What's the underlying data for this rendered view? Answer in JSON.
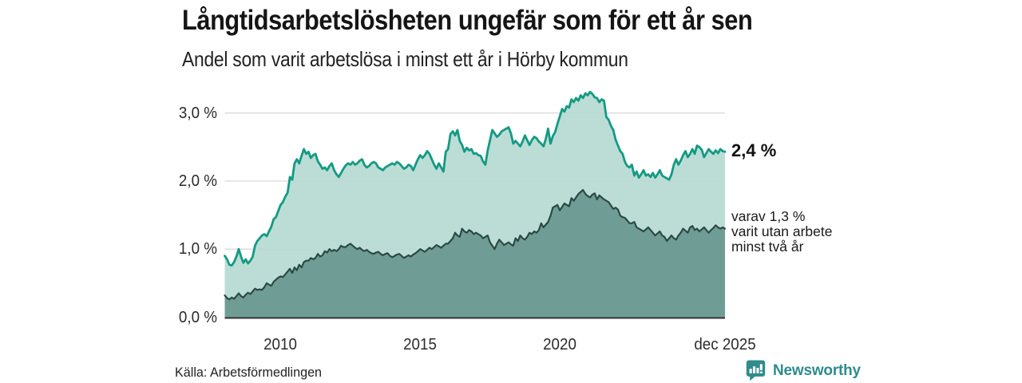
{
  "header": {
    "title": "Långtidsarbetslösheten ungefär som för ett år sen",
    "subtitle": "Andel som varit arbetslösa i minst ett år i Hörby kommun"
  },
  "annotations": {
    "series1_end_label": "2,4 %",
    "series2_end_label_lines": [
      "varav 1,3 %",
      "varit utan arbete",
      "minst två år"
    ]
  },
  "footer": {
    "source": "Källa: Arbetsförmedlingen",
    "brand": "Newsworthy",
    "brand_logo_icon": "speech-bubble-bar-chart-icon"
  },
  "colors": {
    "background": "#ffffff",
    "title_text": "#151515",
    "body_text": "#222222",
    "gridline": "#d8d8d8",
    "axis_line": "#333333",
    "brand_teal": "#2f8b8c"
  },
  "chart_data": {
    "type": "area",
    "unit": "%",
    "x_start": "2008-01",
    "x_end": "2025-12",
    "x_frequency": "monthly",
    "grid": true,
    "ylim": [
      0,
      3.35
    ],
    "y_ticks": [
      {
        "value": 0,
        "label": "0,0 %"
      },
      {
        "value": 1,
        "label": "1,0 %"
      },
      {
        "value": 2,
        "label": "2,0 %"
      },
      {
        "value": 3,
        "label": "3,0 %"
      }
    ],
    "x_ticks": [
      {
        "index": 24,
        "label": "2010"
      },
      {
        "index": 84,
        "label": "2015"
      },
      {
        "index": 144,
        "label": "2020"
      },
      {
        "index": 215,
        "label": "dec 2025"
      }
    ],
    "series": [
      {
        "name": "Arbetslösa minst ett år",
        "end_value_label": "2,4 %",
        "line_color": "#149a82",
        "fill_color": "#b5dad2",
        "line_width": 2.8,
        "values": [
          0.9,
          0.85,
          0.77,
          0.76,
          0.81,
          0.89,
          1.0,
          0.89,
          0.8,
          0.85,
          0.79,
          0.83,
          0.89,
          1.05,
          1.12,
          1.16,
          1.2,
          1.22,
          1.19,
          1.26,
          1.33,
          1.44,
          1.47,
          1.56,
          1.65,
          1.69,
          1.77,
          1.83,
          2.06,
          2.02,
          2.26,
          2.32,
          2.26,
          2.37,
          2.47,
          2.4,
          2.43,
          2.34,
          2.38,
          2.4,
          2.29,
          2.24,
          2.18,
          2.2,
          2.16,
          2.22,
          2.26,
          2.16,
          2.1,
          2.06,
          2.12,
          2.18,
          2.23,
          2.26,
          2.24,
          2.28,
          2.24,
          2.26,
          2.3,
          2.32,
          2.24,
          2.2,
          2.22,
          2.26,
          2.28,
          2.26,
          2.2,
          2.18,
          2.16,
          2.2,
          2.22,
          2.24,
          2.26,
          2.24,
          2.28,
          2.26,
          2.22,
          2.18,
          2.2,
          2.24,
          2.22,
          2.16,
          2.24,
          2.32,
          2.38,
          2.34,
          2.38,
          2.44,
          2.4,
          2.32,
          2.24,
          2.18,
          2.26,
          2.2,
          2.14,
          2.43,
          2.47,
          2.69,
          2.73,
          2.67,
          2.75,
          2.59,
          2.53,
          2.43,
          2.49,
          2.45,
          2.47,
          2.4,
          2.41,
          2.38,
          2.37,
          2.29,
          2.24,
          2.45,
          2.6,
          2.75,
          2.7,
          2.65,
          2.68,
          2.73,
          2.75,
          2.77,
          2.79,
          2.7,
          2.55,
          2.59,
          2.55,
          2.51,
          2.58,
          2.67,
          2.6,
          2.53,
          2.6,
          2.65,
          2.63,
          2.58,
          2.55,
          2.51,
          2.62,
          2.77,
          2.55,
          2.66,
          2.72,
          2.84,
          2.95,
          3.06,
          3.02,
          3.1,
          3.08,
          3.2,
          3.16,
          3.22,
          3.18,
          3.26,
          3.22,
          3.29,
          3.26,
          3.31,
          3.28,
          3.23,
          3.22,
          3.16,
          3.2,
          3.18,
          2.94,
          2.9,
          2.81,
          2.75,
          2.61,
          2.52,
          2.44,
          2.4,
          2.28,
          2.22,
          2.2,
          2.24,
          2.08,
          2.14,
          2.05,
          2.1,
          2.16,
          2.08,
          2.1,
          2.06,
          2.12,
          2.05,
          2.1,
          2.16,
          2.08,
          2.06,
          2.04,
          2.02,
          2.1,
          2.24,
          2.32,
          2.24,
          2.3,
          2.38,
          2.44,
          2.35,
          2.4,
          2.47,
          2.4,
          2.52,
          2.5,
          2.46,
          2.35,
          2.41,
          2.47,
          2.43,
          2.4,
          2.45,
          2.41,
          2.47,
          2.44,
          2.43
        ]
      },
      {
        "name": "varav utan arbete minst två år",
        "end_value_label": "1,3 %",
        "line_color": "#2b4a45",
        "fill_color": "#6f9d96",
        "line_width": 2.2,
        "values": [
          0.32,
          0.28,
          0.26,
          0.29,
          0.27,
          0.31,
          0.35,
          0.31,
          0.29,
          0.33,
          0.36,
          0.34,
          0.38,
          0.42,
          0.4,
          0.41,
          0.4,
          0.44,
          0.5,
          0.48,
          0.46,
          0.52,
          0.55,
          0.58,
          0.6,
          0.59,
          0.63,
          0.67,
          0.71,
          0.65,
          0.73,
          0.69,
          0.77,
          0.73,
          0.81,
          0.83,
          0.83,
          0.87,
          0.85,
          0.87,
          0.93,
          0.89,
          0.91,
          0.97,
          0.95,
          1.0,
          0.97,
          0.99,
          0.97,
          1.0,
          1.05,
          1.03,
          1.03,
          1.06,
          1.08,
          1.05,
          1.02,
          1.0,
          1.02,
          0.99,
          0.97,
          0.99,
          0.96,
          0.94,
          0.93,
          0.95,
          0.96,
          0.93,
          0.91,
          0.93,
          0.94,
          0.9,
          0.88,
          0.9,
          0.92,
          0.93,
          0.9,
          0.87,
          0.89,
          0.91,
          0.89,
          0.92,
          0.94,
          0.97,
          1.0,
          0.98,
          0.96,
          0.99,
          1.02,
          1.0,
          1.03,
          1.06,
          1.04,
          1.02,
          1.05,
          1.08,
          1.08,
          1.12,
          1.16,
          1.24,
          1.2,
          1.18,
          1.3,
          1.26,
          1.24,
          1.28,
          1.26,
          1.22,
          1.24,
          1.22,
          1.2,
          1.16,
          1.18,
          1.2,
          1.1,
          1.05,
          1.0,
          1.08,
          1.14,
          1.1,
          1.06,
          1.08,
          1.1,
          1.07,
          1.05,
          1.16,
          1.12,
          1.2,
          1.16,
          1.14,
          1.18,
          1.24,
          1.22,
          1.26,
          1.24,
          1.28,
          1.38,
          1.32,
          1.36,
          1.4,
          1.49,
          1.61,
          1.63,
          1.65,
          1.57,
          1.62,
          1.67,
          1.65,
          1.63,
          1.75,
          1.71,
          1.76,
          1.81,
          1.84,
          1.87,
          1.81,
          1.78,
          1.76,
          1.8,
          1.82,
          1.73,
          1.79,
          1.76,
          1.73,
          1.71,
          1.69,
          1.64,
          1.59,
          1.61,
          1.58,
          1.49,
          1.47,
          1.46,
          1.42,
          1.38,
          1.38,
          1.4,
          1.32,
          1.3,
          1.28,
          1.26,
          1.29,
          1.32,
          1.28,
          1.24,
          1.2,
          1.23,
          1.26,
          1.2,
          1.18,
          1.12,
          1.16,
          1.2,
          1.16,
          1.14,
          1.2,
          1.24,
          1.3,
          1.27,
          1.24,
          1.32,
          1.34,
          1.28,
          1.3,
          1.26,
          1.29,
          1.32,
          1.28,
          1.24,
          1.28,
          1.31,
          1.35,
          1.32,
          1.3,
          1.32,
          1.3
        ]
      }
    ]
  }
}
